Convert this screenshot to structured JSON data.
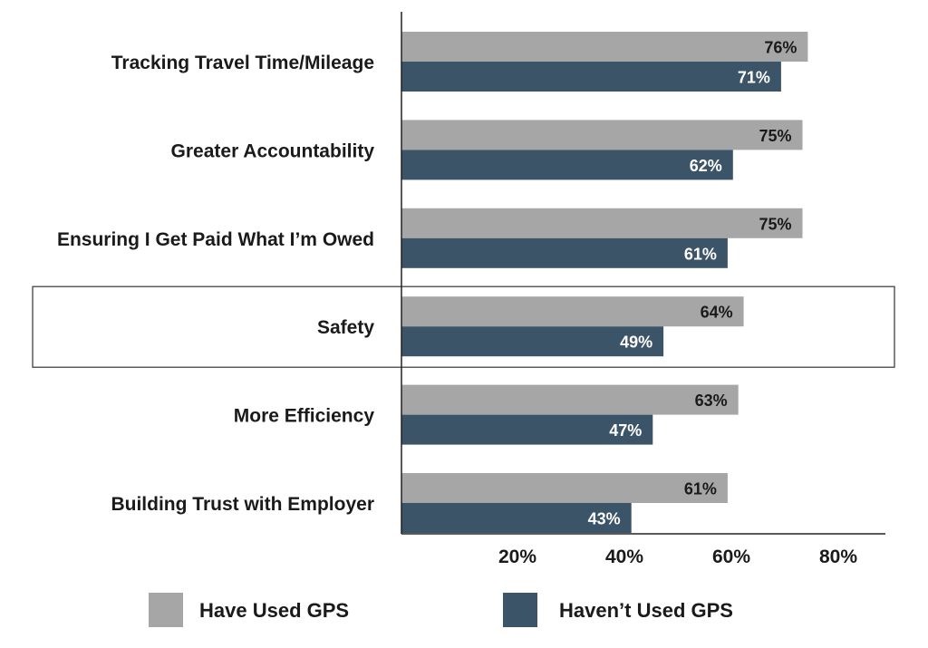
{
  "chart_data": {
    "type": "bar",
    "orientation": "horizontal",
    "categories": [
      "Tracking Travel Time/Mileage",
      "Greater Accountability",
      "Ensuring I Get Paid What I’m Owed",
      "Safety",
      "More Efficiency",
      "Building Trust with Employer"
    ],
    "series": [
      {
        "name": "Have Used GPS",
        "color": "#a6a6a6",
        "values": [
          76,
          75,
          75,
          64,
          63,
          61
        ],
        "labels": [
          "76%",
          "75%",
          "75%",
          "64%",
          "63%",
          "61%"
        ]
      },
      {
        "name": "Haven’t Used GPS",
        "color": "#3b5468",
        "values": [
          71,
          62,
          61,
          49,
          47,
          43
        ],
        "labels": [
          "71%",
          "62%",
          "61%",
          "49%",
          "47%",
          "43%"
        ]
      }
    ],
    "xlim": [
      0,
      88
    ],
    "x_ticks": [
      20,
      40,
      60,
      80
    ],
    "x_tick_labels": [
      "20%",
      "40%",
      "60%",
      "80%"
    ],
    "highlighted_category": "Safety",
    "legend_position": "bottom",
    "grid": false
  }
}
